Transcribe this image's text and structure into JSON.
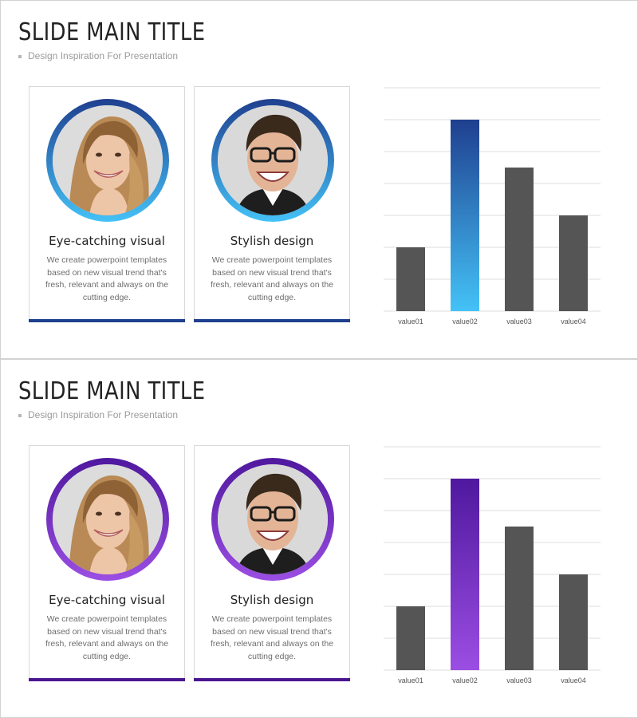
{
  "slides": [
    {
      "title": "SLIDE MAIN TITLE",
      "subtitle": "Design Inspiration For Presentation",
      "theme": {
        "accent_dark": "#1f3f8f",
        "accent_light": "#44c2f7",
        "bar": "#1f3f8f"
      },
      "cards": [
        {
          "title": "Eye-catching visual",
          "text": "We create powerpoint templates based on new visual trend that's fresh, relevant and always on the cutting edge."
        },
        {
          "title": "Stylish design",
          "text": "We create powerpoint templates based on new visual trend that's fresh, relevant and always on the cutting edge."
        }
      ]
    },
    {
      "title": "SLIDE MAIN TITLE",
      "subtitle": "Design Inspiration For Presentation",
      "theme": {
        "accent_dark": "#4f189e",
        "accent_light": "#9b4ee3",
        "bar": "#4a168f"
      },
      "cards": [
        {
          "title": "Eye-catching visual",
          "text": "We create powerpoint templates based on new visual trend that's fresh, relevant and always on the cutting edge."
        },
        {
          "title": "Stylish design",
          "text": "We create powerpoint templates based on new visual trend that's fresh, relevant and always on the cutting edge."
        }
      ]
    }
  ],
  "chart_data": [
    {
      "type": "bar",
      "categories": [
        "value01",
        "value02",
        "value03",
        "value04"
      ],
      "values": [
        2,
        6,
        4.5,
        3
      ],
      "ylim": [
        0,
        7
      ],
      "grid": true,
      "highlight_index": 1,
      "bar_color": "#555555",
      "highlight_colors": [
        "#1f3f8f",
        "#44c2f7"
      ]
    },
    {
      "type": "bar",
      "categories": [
        "value01",
        "value02",
        "value03",
        "value04"
      ],
      "values": [
        2,
        6,
        4.5,
        3
      ],
      "ylim": [
        0,
        7
      ],
      "grid": true,
      "highlight_index": 1,
      "bar_color": "#555555",
      "highlight_colors": [
        "#4f189e",
        "#9b4ee3"
      ]
    }
  ]
}
